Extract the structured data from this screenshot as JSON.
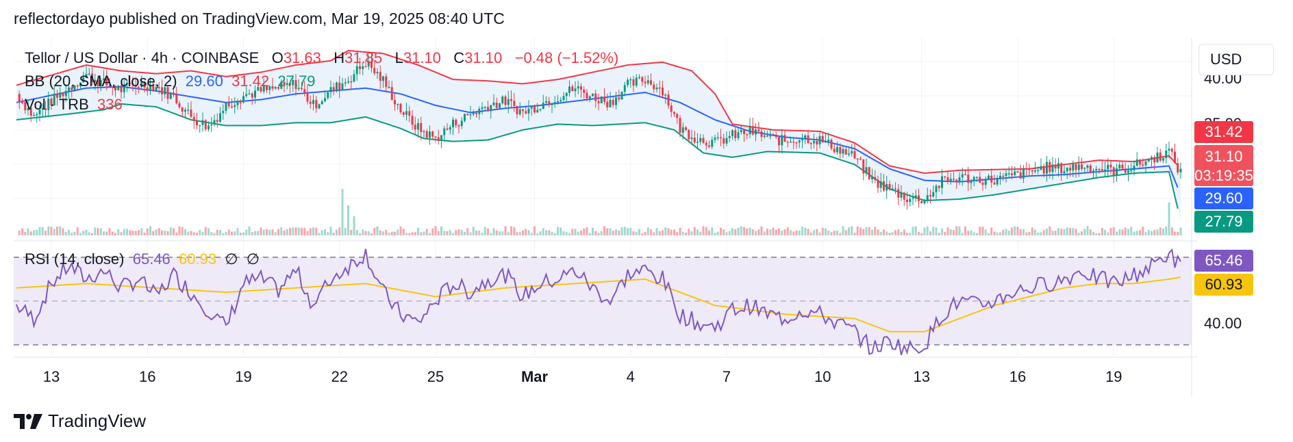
{
  "header": {
    "published": "reflectordayo published on TradingView.com, Mar 19, 2025 08:40 UTC"
  },
  "legend": {
    "symbol": "Tellor / US Dollar · 4h · COINBASE",
    "o_label": "O",
    "o": "31.63",
    "h_label": "H",
    "h": "31.85",
    "l_label": "L",
    "l": "31.10",
    "c_label": "C",
    "c": "31.10",
    "change": "−0.48 (−1.52%)",
    "bb_label": "BB (20, SMA, close, 2)",
    "bb_basis": "29.60",
    "bb_upper": "31.42",
    "bb_lower": "27.79",
    "vol_label": "Vol · TRB",
    "vol_value": "336",
    "rsi_label": "RSI (14, close)",
    "rsi_value": "65.46",
    "rsi_ma": "60.93",
    "rsi_empty1": "∅",
    "rsi_empty2": "∅"
  },
  "price_axis": {
    "currency": "USD",
    "badges": {
      "upper": "31.42",
      "price": "31.10",
      "countdown": "03:19:35",
      "basis": "29.60",
      "lower": "27.79",
      "rsi": "65.46",
      "rsi_ma": "60.93"
    },
    "tick_labels": [
      "40.00",
      "35.00"
    ],
    "rsi_tick": "40.00"
  },
  "colors": {
    "up": "#089981",
    "down": "#f23645",
    "upper_band": "#f23645",
    "basis": "#2962ff",
    "lower_band": "#089981",
    "band_fill": "#eaf3fb",
    "rsi_line": "#7e57c2",
    "rsi_ma": "#f7c50b",
    "rsi_bg": "#efeaf8"
  },
  "chart_data": {
    "type": "candlestick",
    "title": "Tellor / US Dollar · 4h · COINBASE",
    "x_ticks": [
      "13",
      "16",
      "19",
      "22",
      "25",
      "Mar",
      "4",
      "7",
      "10",
      "13",
      "16",
      "19"
    ],
    "anchor_points": {
      "close": [
        [
          0,
          36.6
        ],
        [
          6,
          35.0
        ],
        [
          12,
          36.1
        ],
        [
          18,
          37.0
        ],
        [
          24,
          37.9
        ],
        [
          30,
          37.3
        ],
        [
          36,
          36.9
        ],
        [
          42,
          37.3
        ],
        [
          48,
          37.1
        ],
        [
          54,
          36.4
        ],
        [
          60,
          35.0
        ],
        [
          66,
          34.3
        ],
        [
          72,
          35.8
        ],
        [
          78,
          36.5
        ],
        [
          84,
          36.8
        ],
        [
          90,
          37.0
        ],
        [
          96,
          37.3
        ],
        [
          102,
          35.8
        ],
        [
          108,
          36.8
        ],
        [
          114,
          37.6
        ],
        [
          120,
          38.8
        ],
        [
          126,
          37.5
        ],
        [
          132,
          35.5
        ],
        [
          138,
          34.2
        ],
        [
          144,
          33.5
        ],
        [
          150,
          34.5
        ],
        [
          156,
          35.2
        ],
        [
          162,
          35.8
        ],
        [
          168,
          36.1
        ],
        [
          174,
          35.3
        ],
        [
          180,
          35.9
        ],
        [
          186,
          36.4
        ],
        [
          192,
          37.0
        ],
        [
          198,
          36.4
        ],
        [
          204,
          36.0
        ],
        [
          210,
          37.2
        ],
        [
          216,
          37.6
        ],
        [
          222,
          36.9
        ],
        [
          228,
          34.2
        ],
        [
          234,
          33.5
        ],
        [
          240,
          33.2
        ],
        [
          246,
          33.7
        ],
        [
          252,
          34.0
        ],
        [
          258,
          33.6
        ],
        [
          264,
          33.3
        ],
        [
          270,
          33.6
        ],
        [
          276,
          33.4
        ],
        [
          282,
          32.8
        ],
        [
          288,
          32.2
        ],
        [
          294,
          30.6
        ],
        [
          300,
          30.0
        ],
        [
          306,
          29.4
        ],
        [
          312,
          29.3
        ],
        [
          318,
          30.5
        ],
        [
          324,
          30.8
        ],
        [
          330,
          30.7
        ],
        [
          336,
          30.6
        ],
        [
          342,
          30.9
        ],
        [
          348,
          31.2
        ],
        [
          354,
          31.5
        ],
        [
          360,
          31.4
        ],
        [
          366,
          31.6
        ],
        [
          372,
          31.4
        ],
        [
          378,
          31.3
        ],
        [
          384,
          31.6
        ],
        [
          390,
          32.1
        ],
        [
          396,
          32.6
        ],
        [
          400,
          31.1
        ]
      ],
      "bb_upper": [
        [
          0,
          37.2
        ],
        [
          24,
          38.6
        ],
        [
          36,
          38.2
        ],
        [
          48,
          38.0
        ],
        [
          60,
          38.2
        ],
        [
          72,
          37.8
        ],
        [
          84,
          38.1
        ],
        [
          96,
          38.6
        ],
        [
          108,
          38.9
        ],
        [
          114,
          39.6
        ],
        [
          126,
          39.4
        ],
        [
          138,
          38.6
        ],
        [
          150,
          37.6
        ],
        [
          162,
          37.5
        ],
        [
          174,
          37.3
        ],
        [
          186,
          37.6
        ],
        [
          198,
          38.1
        ],
        [
          210,
          38.6
        ],
        [
          222,
          38.8
        ],
        [
          232,
          38.2
        ],
        [
          240,
          36.6
        ],
        [
          246,
          34.5
        ],
        [
          260,
          34.1
        ],
        [
          276,
          34.0
        ],
        [
          288,
          33.2
        ],
        [
          300,
          31.6
        ],
        [
          312,
          31.1
        ],
        [
          324,
          31.3
        ],
        [
          348,
          31.4
        ],
        [
          372,
          32.0
        ],
        [
          384,
          31.9
        ],
        [
          396,
          32.3
        ],
        [
          400,
          31.42
        ]
      ],
      "bb_basis": [
        [
          0,
          36.0
        ],
        [
          24,
          37.0
        ],
        [
          36,
          37.1
        ],
        [
          48,
          36.8
        ],
        [
          60,
          36.4
        ],
        [
          72,
          36.0
        ],
        [
          84,
          36.2
        ],
        [
          96,
          36.6
        ],
        [
          108,
          36.8
        ],
        [
          120,
          37.0
        ],
        [
          132,
          36.6
        ],
        [
          144,
          35.8
        ],
        [
          156,
          35.3
        ],
        [
          168,
          35.6
        ],
        [
          180,
          35.8
        ],
        [
          192,
          36.1
        ],
        [
          204,
          36.4
        ],
        [
          216,
          36.7
        ],
        [
          228,
          36.0
        ],
        [
          240,
          34.8
        ],
        [
          252,
          34.0
        ],
        [
          264,
          33.6
        ],
        [
          276,
          33.4
        ],
        [
          288,
          32.8
        ],
        [
          300,
          31.4
        ],
        [
          312,
          30.6
        ],
        [
          324,
          30.5
        ],
        [
          336,
          30.7
        ],
        [
          348,
          30.9
        ],
        [
          360,
          31.0
        ],
        [
          372,
          31.2
        ],
        [
          384,
          31.4
        ],
        [
          396,
          31.6
        ],
        [
          400,
          29.6
        ]
      ],
      "bb_lower": [
        [
          0,
          34.8
        ],
        [
          18,
          35.2
        ],
        [
          30,
          35.5
        ],
        [
          36,
          35.9
        ],
        [
          48,
          35.7
        ],
        [
          60,
          34.8
        ],
        [
          72,
          34.4
        ],
        [
          84,
          34.4
        ],
        [
          96,
          34.6
        ],
        [
          108,
          34.6
        ],
        [
          120,
          35.0
        ],
        [
          132,
          34.2
        ],
        [
          140,
          33.5
        ],
        [
          150,
          33.3
        ],
        [
          162,
          33.4
        ],
        [
          174,
          34.1
        ],
        [
          186,
          34.5
        ],
        [
          198,
          34.4
        ],
        [
          216,
          34.6
        ],
        [
          226,
          34.1
        ],
        [
          236,
          32.5
        ],
        [
          246,
          32.2
        ],
        [
          258,
          32.6
        ],
        [
          276,
          32.5
        ],
        [
          288,
          31.7
        ],
        [
          300,
          30.0
        ],
        [
          312,
          29.2
        ],
        [
          324,
          29.3
        ],
        [
          336,
          29.6
        ],
        [
          348,
          30.0
        ],
        [
          360,
          30.4
        ],
        [
          372,
          30.8
        ],
        [
          384,
          31.1
        ],
        [
          396,
          31.2
        ],
        [
          400,
          27.79
        ]
      ],
      "rsi": [
        [
          0,
          48
        ],
        [
          6,
          42
        ],
        [
          12,
          58
        ],
        [
          18,
          66
        ],
        [
          24,
          60
        ],
        [
          30,
          64
        ],
        [
          36,
          56
        ],
        [
          42,
          60
        ],
        [
          48,
          52
        ],
        [
          54,
          62
        ],
        [
          60,
          54
        ],
        [
          66,
          46
        ],
        [
          72,
          38
        ],
        [
          78,
          58
        ],
        [
          84,
          60
        ],
        [
          90,
          55
        ],
        [
          96,
          64
        ],
        [
          102,
          48
        ],
        [
          108,
          60
        ],
        [
          114,
          66
        ],
        [
          120,
          72
        ],
        [
          126,
          54
        ],
        [
          132,
          44
        ],
        [
          138,
          40
        ],
        [
          144,
          50
        ],
        [
          150,
          58
        ],
        [
          156,
          54
        ],
        [
          162,
          60
        ],
        [
          168,
          62
        ],
        [
          174,
          52
        ],
        [
          180,
          58
        ],
        [
          186,
          60
        ],
        [
          192,
          64
        ],
        [
          198,
          56
        ],
        [
          204,
          50
        ],
        [
          210,
          62
        ],
        [
          216,
          64
        ],
        [
          222,
          60
        ],
        [
          228,
          44
        ],
        [
          234,
          40
        ],
        [
          240,
          38
        ],
        [
          246,
          46
        ],
        [
          252,
          48
        ],
        [
          258,
          44
        ],
        [
          264,
          42
        ],
        [
          270,
          46
        ],
        [
          276,
          44
        ],
        [
          282,
          40
        ],
        [
          288,
          36
        ],
        [
          294,
          28
        ],
        [
          300,
          32
        ],
        [
          306,
          28
        ],
        [
          312,
          30
        ],
        [
          318,
          44
        ],
        [
          324,
          50
        ],
        [
          330,
          48
        ],
        [
          336,
          50
        ],
        [
          342,
          54
        ],
        [
          348,
          56
        ],
        [
          354,
          58
        ],
        [
          360,
          60
        ],
        [
          366,
          64
        ],
        [
          372,
          60
        ],
        [
          378,
          58
        ],
        [
          384,
          62
        ],
        [
          390,
          66
        ],
        [
          396,
          72
        ],
        [
          400,
          65.46
        ]
      ],
      "rsi_ma": [
        [
          0,
          56
        ],
        [
          24,
          58
        ],
        [
          48,
          56
        ],
        [
          72,
          54
        ],
        [
          96,
          56
        ],
        [
          120,
          58
        ],
        [
          144,
          52
        ],
        [
          168,
          56
        ],
        [
          192,
          58
        ],
        [
          216,
          60
        ],
        [
          240,
          48
        ],
        [
          264,
          44
        ],
        [
          288,
          42
        ],
        [
          300,
          36
        ],
        [
          312,
          36
        ],
        [
          324,
          42
        ],
        [
          336,
          48
        ],
        [
          348,
          52
        ],
        [
          360,
          56
        ],
        [
          372,
          58
        ],
        [
          384,
          58
        ],
        [
          396,
          60
        ],
        [
          400,
          60.93
        ]
      ]
    },
    "volume_spikes": [
      [
        112,
        0.85
      ],
      [
        114,
        0.55
      ],
      [
        116,
        0.35
      ],
      [
        396,
        0.6
      ]
    ],
    "y_range": [
      26.5,
      40.5
    ],
    "rsi_levels": {
      "upper": 70,
      "middle": 50,
      "lower": 30
    },
    "rsi_range": [
      25,
      75
    ],
    "grid": true,
    "legend_placement": "top-left"
  }
}
